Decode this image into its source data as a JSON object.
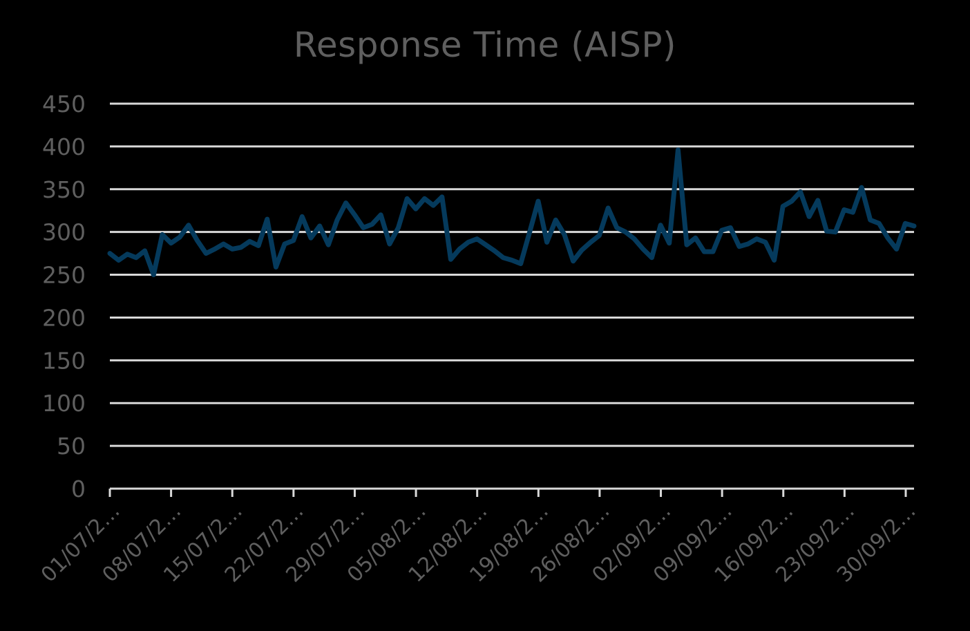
{
  "chart_data": {
    "type": "line",
    "title": "Response Time (AISP)",
    "xlabel": "",
    "ylabel": "",
    "ylim": [
      0,
      450
    ],
    "yticks": [
      0,
      50,
      100,
      150,
      200,
      250,
      300,
      350,
      400,
      450
    ],
    "grid": true,
    "legend": null,
    "x_tick_labels": [
      "01/07/2…",
      "08/07/2…",
      "15/07/2…",
      "22/07/2…",
      "29/07/2…",
      "05/08/2…",
      "12/08/2…",
      "19/08/2…",
      "26/08/2…",
      "02/09/2…",
      "09/09/2…",
      "16/09/2…",
      "23/09/2…",
      "30/09/2…"
    ],
    "x_tick_interval_days": 7,
    "x_start": "01/07",
    "x_end": "30/09",
    "series": [
      {
        "name": "Response Time (AISP)",
        "color": "#053a5c",
        "values": [
          275,
          267,
          274,
          270,
          278,
          250,
          297,
          287,
          294,
          308,
          290,
          275,
          280,
          286,
          280,
          282,
          289,
          284,
          315,
          259,
          286,
          290,
          318,
          293,
          307,
          285,
          314,
          334,
          320,
          305,
          309,
          320,
          286,
          305,
          339,
          327,
          339,
          331,
          341,
          268,
          280,
          288,
          292,
          285,
          278,
          270,
          267,
          263,
          299,
          336,
          288,
          314,
          297,
          266,
          279,
          288,
          296,
          328,
          305,
          300,
          292,
          280,
          270,
          308,
          287,
          396,
          285,
          293,
          277,
          277,
          302,
          305,
          283,
          286,
          292,
          288,
          267,
          330,
          336,
          347,
          318,
          337,
          301,
          300,
          326,
          323,
          352,
          314,
          310,
          293,
          280,
          310,
          307
        ]
      }
    ]
  },
  "colors": {
    "background": "#000000",
    "gridline": "#d9d9d9",
    "text": "#5f5f5f",
    "line": "#053a5c"
  }
}
